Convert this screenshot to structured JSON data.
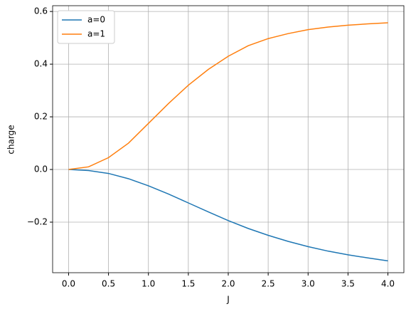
{
  "chart_data": {
    "type": "line",
    "x_label": "J",
    "y_label": "charge",
    "x": [
      0,
      0.25,
      0.5,
      0.75,
      1.0,
      1.25,
      1.5,
      1.75,
      2.0,
      2.25,
      2.5,
      2.75,
      3.0,
      3.25,
      3.5,
      3.75,
      4.0
    ],
    "series": [
      {
        "name": "a=0",
        "color": "#1f77b4",
        "values": [
          0,
          -0.004,
          -0.015,
          -0.035,
          -0.062,
          -0.093,
          -0.127,
          -0.161,
          -0.194,
          -0.224,
          -0.25,
          -0.273,
          -0.293,
          -0.31,
          -0.324,
          -0.336,
          -0.347
        ]
      },
      {
        "name": "a=1",
        "color": "#ff7f0e",
        "values": [
          0,
          0.01,
          0.045,
          0.1,
          0.175,
          0.25,
          0.32,
          0.38,
          0.43,
          0.47,
          0.497,
          0.516,
          0.531,
          0.541,
          0.548,
          0.553,
          0.557
        ]
      }
    ],
    "xlim": [
      -0.2,
      4.2
    ],
    "ylim": [
      -0.392,
      0.622
    ],
    "xticks": [
      {
        "value": 0,
        "label": "0.0"
      },
      {
        "value": 0.5,
        "label": "0.5"
      },
      {
        "value": 1,
        "label": "1.0"
      },
      {
        "value": 1.5,
        "label": "1.5"
      },
      {
        "value": 2,
        "label": "2.0"
      },
      {
        "value": 2.5,
        "label": "2.5"
      },
      {
        "value": 3,
        "label": "3.0"
      },
      {
        "value": 3.5,
        "label": "3.5"
      },
      {
        "value": 4,
        "label": "4.0"
      }
    ],
    "yticks": [
      {
        "value": -0.2,
        "label": "−0.2"
      },
      {
        "value": 0,
        "label": "0.0"
      },
      {
        "value": 0.2,
        "label": "0.2"
      },
      {
        "value": 0.4,
        "label": "0.4"
      },
      {
        "value": 0.6,
        "label": "0.6"
      }
    ],
    "grid": true,
    "legend": "upper left"
  }
}
